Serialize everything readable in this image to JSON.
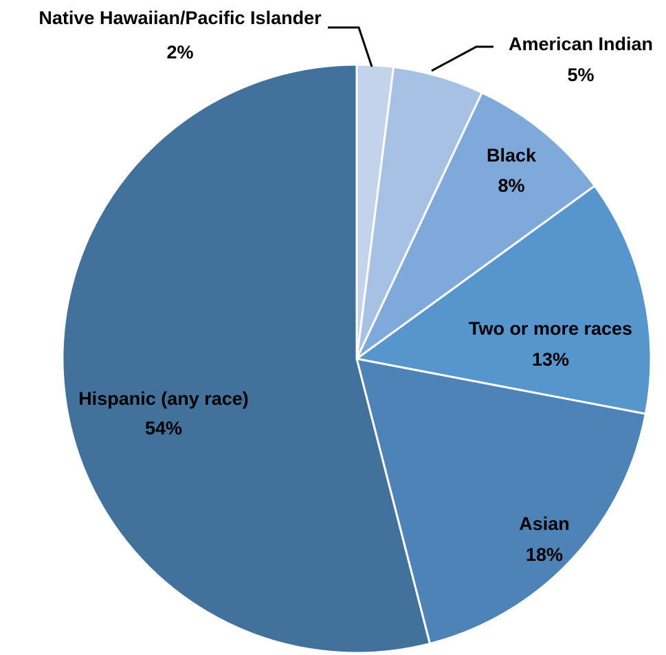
{
  "chart_data": {
    "type": "pie",
    "title": "",
    "slices": [
      {
        "name": "Native Hawaiian/Pacific Islander",
        "value": 2,
        "value_label": "2%",
        "color": "#c3d4ea"
      },
      {
        "name": "American Indian",
        "value": 5,
        "value_label": "5%",
        "color": "#a6c1e4"
      },
      {
        "name": "Black",
        "value": 8,
        "value_label": "8%",
        "color": "#7fa9da"
      },
      {
        "name": "Two or more races",
        "value": 13,
        "value_label": "13%",
        "color": "#5795cd"
      },
      {
        "name": "Asian",
        "value": 18,
        "value_label": "18%",
        "color": "#4d83b7"
      },
      {
        "name": "Hispanic (any race)",
        "value": 54,
        "value_label": "54%",
        "color": "#42719c"
      }
    ],
    "legend": "none",
    "label_position": "on-slices"
  }
}
